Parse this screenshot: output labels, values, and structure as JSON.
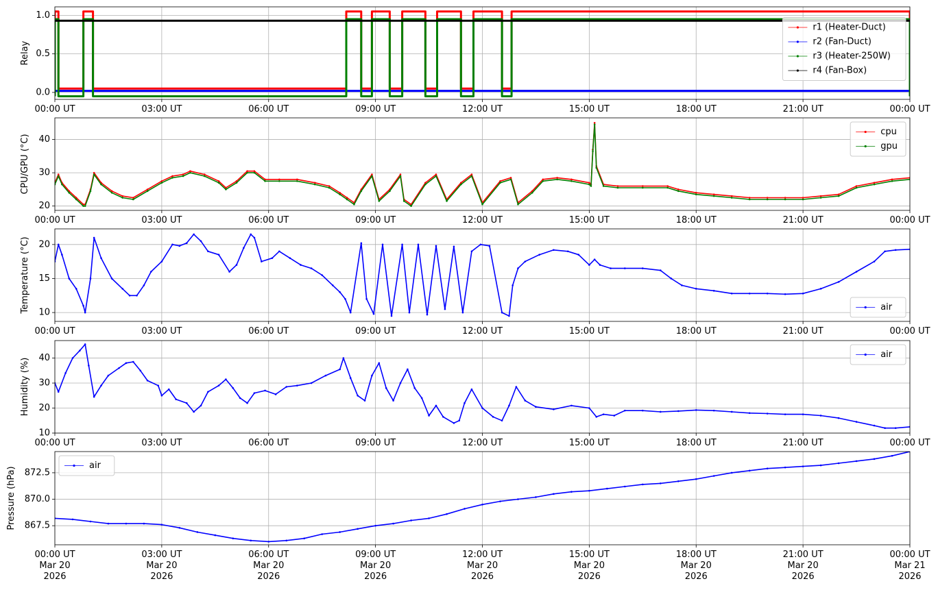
{
  "chart_data": [
    {
      "type": "line",
      "ylabel": "Relay",
      "ylim": [
        -0.09,
        1.11
      ],
      "yticks": [
        0.0,
        0.5,
        1.0
      ],
      "ytick_labels": [
        "0.0",
        "0.5",
        "1.0"
      ],
      "xlim": [
        0,
        24
      ],
      "xticks": [
        0,
        3,
        6,
        9,
        12,
        15,
        18,
        21,
        24
      ],
      "xtick_labels": [
        "00:00 UT",
        "03:00 UT",
        "06:00 UT",
        "09:00 UT",
        "12:00 UT",
        "15:00 UT",
        "18:00 UT",
        "21:00 UT",
        "00:00 UT"
      ],
      "grid": true,
      "legend_position": "center-right",
      "series": [
        {
          "name": "r1 (Heater-Duct)",
          "color": "#ff0000",
          "on_level": 1.05,
          "off_level": 0.05,
          "on_intervals": [
            [
              0.0,
              0.1
            ],
            [
              0.8,
              1.07
            ],
            [
              8.18,
              8.6
            ],
            [
              8.9,
              9.4
            ],
            [
              9.75,
              10.4
            ],
            [
              10.73,
              11.4
            ],
            [
              11.75,
              12.55
            ],
            [
              12.82,
              24.0
            ]
          ]
        },
        {
          "name": "r2 (Fan-Duct)",
          "color": "#0000ff",
          "constant": 0.02
        },
        {
          "name": "r3 (Heater-250W)",
          "color": "#008000",
          "on_level": 0.95,
          "off_level": -0.05,
          "on_intervals": [
            [
              0.0,
              0.1
            ],
            [
              0.8,
              1.07
            ],
            [
              8.18,
              8.6
            ],
            [
              8.9,
              9.4
            ],
            [
              9.75,
              10.4
            ],
            [
              10.73,
              11.4
            ],
            [
              11.75,
              12.55
            ],
            [
              12.82,
              24.0
            ]
          ]
        },
        {
          "name": "r4 (Fan-Box)",
          "color": "#000000",
          "constant": 0.93
        }
      ]
    },
    {
      "type": "line",
      "ylabel": "CPU/GPU (°C)",
      "ylim": [
        18.7,
        46.5
      ],
      "yticks": [
        20,
        30,
        40
      ],
      "ytick_labels": [
        "20",
        "30",
        "40"
      ],
      "xlim": [
        0,
        24
      ],
      "xticks": [
        0,
        3,
        6,
        9,
        12,
        15,
        18,
        21,
        24
      ],
      "xtick_labels": [
        "00:00 UT",
        "03:00 UT",
        "06:00 UT",
        "09:00 UT",
        "12:00 UT",
        "15:00 UT",
        "18:00 UT",
        "21:00 UT",
        "00:00 UT"
      ],
      "grid": true,
      "legend_position": "top-right",
      "series": [
        {
          "name": "cpu",
          "color": "#ff0000",
          "x": [
            0.0,
            0.1,
            0.2,
            0.4,
            0.6,
            0.8,
            0.85,
            1.0,
            1.1,
            1.3,
            1.6,
            1.9,
            2.2,
            2.6,
            3.0,
            3.3,
            3.6,
            3.8,
            4.2,
            4.6,
            4.8,
            5.1,
            5.4,
            5.6,
            5.9,
            6.3,
            6.8,
            7.3,
            7.7,
            8.0,
            8.2,
            8.4,
            8.6,
            8.9,
            9.1,
            9.4,
            9.7,
            9.8,
            10.0,
            10.4,
            10.7,
            11.0,
            11.4,
            11.7,
            12.0,
            12.5,
            12.8,
            13.0,
            13.4,
            13.7,
            14.1,
            14.5,
            15.0,
            15.05,
            15.1,
            15.15,
            15.2,
            15.4,
            15.8,
            16.5,
            17.2,
            17.5,
            18.0,
            18.5,
            19.0,
            19.5,
            20.0,
            20.5,
            21.0,
            21.5,
            22.0,
            22.5,
            23.0,
            23.5,
            24.0
          ],
          "y": [
            27.0,
            29.5,
            27.0,
            24.5,
            22.5,
            20.5,
            20.5,
            25.0,
            30.0,
            27.0,
            24.5,
            23.0,
            22.5,
            25.0,
            27.5,
            29.0,
            29.5,
            30.5,
            29.5,
            27.5,
            25.5,
            27.5,
            30.5,
            30.5,
            28.0,
            28.0,
            28.0,
            27.0,
            26.0,
            24.0,
            22.5,
            21.0,
            25.0,
            29.5,
            22.0,
            25.0,
            29.5,
            22.0,
            20.5,
            27.0,
            29.5,
            22.0,
            27.0,
            29.5,
            21.0,
            27.5,
            28.5,
            21.0,
            24.5,
            28.0,
            28.5,
            28.0,
            27.0,
            26.5,
            37.0,
            45.0,
            32.0,
            26.5,
            26.0,
            26.0,
            26.0,
            25.0,
            24.0,
            23.5,
            23.0,
            22.5,
            22.5,
            22.5,
            22.5,
            23.0,
            23.5,
            26.0,
            27.0,
            28.0,
            28.5
          ]
        },
        {
          "name": "gpu",
          "color": "#008000",
          "x": [
            0.0,
            0.1,
            0.2,
            0.4,
            0.6,
            0.8,
            0.85,
            1.0,
            1.1,
            1.3,
            1.6,
            1.9,
            2.2,
            2.6,
            3.0,
            3.3,
            3.6,
            3.8,
            4.2,
            4.6,
            4.8,
            5.1,
            5.4,
            5.6,
            5.9,
            6.3,
            6.8,
            7.3,
            7.7,
            8.0,
            8.2,
            8.4,
            8.6,
            8.9,
            9.1,
            9.4,
            9.7,
            9.8,
            10.0,
            10.4,
            10.7,
            11.0,
            11.4,
            11.7,
            12.0,
            12.5,
            12.8,
            13.0,
            13.4,
            13.7,
            14.1,
            14.5,
            15.0,
            15.05,
            15.1,
            15.15,
            15.2,
            15.4,
            15.8,
            16.5,
            17.2,
            17.5,
            18.0,
            18.5,
            19.0,
            19.5,
            20.0,
            20.5,
            21.0,
            21.5,
            22.0,
            22.5,
            23.0,
            23.5,
            24.0
          ],
          "y": [
            26.5,
            29.0,
            26.5,
            24.0,
            22.0,
            20.0,
            20.0,
            24.5,
            29.5,
            26.5,
            24.0,
            22.5,
            22.0,
            24.5,
            27.0,
            28.5,
            29.0,
            30.0,
            29.0,
            27.0,
            25.0,
            27.0,
            30.0,
            30.0,
            27.5,
            27.5,
            27.5,
            26.5,
            25.5,
            23.5,
            22.0,
            20.5,
            24.5,
            29.0,
            21.5,
            24.5,
            29.0,
            21.5,
            20.0,
            26.5,
            29.0,
            21.5,
            26.5,
            29.0,
            20.5,
            27.0,
            28.0,
            20.5,
            24.0,
            27.5,
            28.0,
            27.5,
            26.5,
            26.0,
            36.5,
            44.5,
            31.5,
            26.0,
            25.5,
            25.5,
            25.5,
            24.5,
            23.5,
            23.0,
            22.5,
            22.0,
            22.0,
            22.0,
            22.0,
            22.5,
            23.0,
            25.5,
            26.5,
            27.5,
            28.0
          ]
        }
      ]
    },
    {
      "type": "line",
      "ylabel": "Temperature (°C)",
      "ylim": [
        8.7,
        22.3
      ],
      "yticks": [
        10,
        15,
        20
      ],
      "ytick_labels": [
        "10",
        "15",
        "20"
      ],
      "xlim": [
        0,
        24
      ],
      "xticks": [
        0,
        3,
        6,
        9,
        12,
        15,
        18,
        21,
        24
      ],
      "xtick_labels": [
        "00:00 UT",
        "03:00 UT",
        "06:00 UT",
        "09:00 UT",
        "12:00 UT",
        "15:00 UT",
        "18:00 UT",
        "21:00 UT",
        "00:00 UT"
      ],
      "grid": true,
      "legend_position": "bottom-right",
      "series": [
        {
          "name": "air",
          "color": "#0000ff",
          "x": [
            0.0,
            0.1,
            0.2,
            0.4,
            0.6,
            0.8,
            0.85,
            1.0,
            1.1,
            1.3,
            1.6,
            1.9,
            2.1,
            2.3,
            2.5,
            2.7,
            3.0,
            3.3,
            3.5,
            3.7,
            3.9,
            4.1,
            4.3,
            4.6,
            4.9,
            5.1,
            5.3,
            5.5,
            5.6,
            5.8,
            6.1,
            6.3,
            6.6,
            6.9,
            7.2,
            7.5,
            7.8,
            8.0,
            8.15,
            8.3,
            8.6,
            8.75,
            8.95,
            9.2,
            9.45,
            9.75,
            9.95,
            10.2,
            10.45,
            10.7,
            10.95,
            11.2,
            11.45,
            11.7,
            11.95,
            12.2,
            12.55,
            12.75,
            12.85,
            13.0,
            13.2,
            13.6,
            14.0,
            14.4,
            14.7,
            15.0,
            15.15,
            15.3,
            15.6,
            16.0,
            16.5,
            17.0,
            17.3,
            17.6,
            18.0,
            18.5,
            19.0,
            19.5,
            20.0,
            20.5,
            21.0,
            21.5,
            22.0,
            22.5,
            23.0,
            23.3,
            23.6,
            24.0
          ],
          "y": [
            17.5,
            20.0,
            18.5,
            15.0,
            13.5,
            11.0,
            10.0,
            15.0,
            21.0,
            18.0,
            15.0,
            13.5,
            12.5,
            12.5,
            14.0,
            16.0,
            17.5,
            20.0,
            19.8,
            20.2,
            21.5,
            20.5,
            19.0,
            18.5,
            16.0,
            17.0,
            19.5,
            21.5,
            21.0,
            17.5,
            18.0,
            19.0,
            18.0,
            17.0,
            16.5,
            15.5,
            14.0,
            13.0,
            12.0,
            10.0,
            20.2,
            12.0,
            9.8,
            20.0,
            9.5,
            20.0,
            10.0,
            20.0,
            9.7,
            19.8,
            10.5,
            19.7,
            10.0,
            19.0,
            20.0,
            19.8,
            10.0,
            9.5,
            14.0,
            16.5,
            17.5,
            18.5,
            19.2,
            19.0,
            18.5,
            17.0,
            17.8,
            17.0,
            16.5,
            16.5,
            16.5,
            16.2,
            15.0,
            14.0,
            13.5,
            13.2,
            12.8,
            12.8,
            12.8,
            12.7,
            12.8,
            13.5,
            14.5,
            16.0,
            17.5,
            19.0,
            19.2,
            19.3
          ]
        }
      ]
    },
    {
      "type": "line",
      "ylabel": "Humidity (%)",
      "ylim": [
        10,
        47
      ],
      "yticks": [
        10,
        20,
        30,
        40
      ],
      "ytick_labels": [
        "10",
        "20",
        "30",
        "40"
      ],
      "xlim": [
        0,
        24
      ],
      "xticks": [
        0,
        3,
        6,
        9,
        12,
        15,
        18,
        21,
        24
      ],
      "xtick_labels": [
        "00:00 UT",
        "03:00 UT",
        "06:00 UT",
        "09:00 UT",
        "12:00 UT",
        "15:00 UT",
        "18:00 UT",
        "21:00 UT",
        "00:00 UT"
      ],
      "grid": true,
      "legend_position": "top-right",
      "series": [
        {
          "name": "air",
          "color": "#0000ff",
          "x": [
            0.0,
            0.1,
            0.3,
            0.5,
            0.7,
            0.85,
            0.95,
            1.1,
            1.3,
            1.5,
            1.8,
            2.0,
            2.2,
            2.4,
            2.6,
            2.9,
            3.0,
            3.2,
            3.4,
            3.7,
            3.9,
            4.1,
            4.3,
            4.6,
            4.8,
            5.0,
            5.2,
            5.4,
            5.6,
            5.9,
            6.2,
            6.5,
            6.8,
            7.2,
            7.6,
            8.0,
            8.1,
            8.3,
            8.5,
            8.7,
            8.9,
            9.1,
            9.3,
            9.5,
            9.7,
            9.9,
            10.1,
            10.3,
            10.5,
            10.7,
            10.9,
            11.2,
            11.35,
            11.5,
            11.7,
            12.0,
            12.3,
            12.55,
            12.75,
            12.95,
            13.2,
            13.5,
            14.0,
            14.5,
            15.0,
            15.2,
            15.4,
            15.7,
            16.0,
            16.5,
            17.0,
            17.5,
            18.0,
            18.5,
            19.0,
            19.5,
            20.0,
            20.5,
            21.0,
            21.5,
            22.0,
            22.5,
            23.0,
            23.3,
            23.6,
            24.0
          ],
          "y": [
            30.0,
            26.5,
            34.0,
            40.0,
            43.0,
            45.5,
            37.0,
            24.5,
            29.0,
            33.0,
            36.0,
            38.0,
            38.5,
            35.0,
            31.0,
            29.0,
            25.0,
            27.5,
            23.5,
            22.0,
            18.5,
            21.0,
            26.5,
            29.0,
            31.5,
            28.0,
            24.0,
            22.0,
            26.0,
            27.0,
            25.5,
            28.5,
            29.0,
            30.0,
            33.0,
            35.5,
            40.0,
            32.0,
            25.0,
            23.0,
            33.0,
            38.0,
            28.0,
            23.0,
            30.0,
            35.5,
            28.0,
            24.0,
            17.0,
            21.0,
            16.5,
            14.0,
            15.0,
            22.0,
            27.5,
            20.0,
            16.5,
            15.0,
            21.0,
            28.5,
            23.0,
            20.5,
            19.5,
            21.0,
            20.0,
            16.5,
            17.5,
            17.0,
            19.0,
            19.0,
            18.5,
            18.8,
            19.2,
            19.0,
            18.5,
            18.0,
            17.8,
            17.5,
            17.5,
            17.0,
            16.0,
            14.5,
            13.0,
            12.0,
            12.0,
            12.5
          ]
        }
      ]
    },
    {
      "type": "line",
      "ylabel": "Pressure (hPa)",
      "ylim": [
        865.7,
        874.5
      ],
      "yticks": [
        867.5,
        870.0,
        872.5
      ],
      "ytick_labels": [
        "867.5",
        "870.0",
        "872.5"
      ],
      "xlim": [
        0,
        24
      ],
      "xticks": [
        0,
        3,
        6,
        9,
        12,
        15,
        18,
        21,
        24
      ],
      "xtick_labels": [
        "00:00 UT\nMar 20\n2026",
        "03:00 UT\nMar 20\n2026",
        "06:00 UT\nMar 20\n2026",
        "09:00 UT\nMar 20\n2026",
        "12:00 UT\nMar 20\n2026",
        "15:00 UT\nMar 20\n2026",
        "18:00 UT\nMar 20\n2026",
        "21:00 UT\nMar 20\n2026",
        "00:00 UT\nMar 21\n2026"
      ],
      "grid": true,
      "legend_position": "top-left",
      "series": [
        {
          "name": "air",
          "color": "#0000ff",
          "x": [
            0.0,
            0.5,
            1.0,
            1.5,
            2.0,
            2.5,
            3.0,
            3.5,
            4.0,
            4.5,
            5.0,
            5.5,
            6.0,
            6.5,
            7.0,
            7.5,
            8.0,
            8.5,
            9.0,
            9.5,
            10.0,
            10.5,
            11.0,
            11.5,
            12.0,
            12.5,
            13.0,
            13.5,
            14.0,
            14.5,
            15.0,
            15.5,
            16.0,
            16.5,
            17.0,
            17.5,
            18.0,
            18.5,
            19.0,
            19.5,
            20.0,
            20.5,
            21.0,
            21.5,
            22.0,
            22.5,
            23.0,
            23.5,
            24.0
          ],
          "y": [
            868.2,
            868.1,
            867.9,
            867.7,
            867.7,
            867.7,
            867.6,
            867.3,
            866.9,
            866.6,
            866.3,
            866.1,
            866.0,
            866.1,
            866.3,
            866.7,
            866.9,
            867.2,
            867.5,
            867.7,
            868.0,
            868.2,
            868.6,
            869.1,
            869.5,
            869.8,
            870.0,
            870.2,
            870.5,
            870.7,
            870.8,
            871.0,
            871.2,
            871.4,
            871.5,
            871.7,
            871.9,
            872.2,
            872.5,
            872.7,
            872.9,
            873.0,
            873.1,
            873.2,
            873.4,
            873.6,
            873.8,
            874.1,
            874.5
          ]
        }
      ]
    }
  ]
}
